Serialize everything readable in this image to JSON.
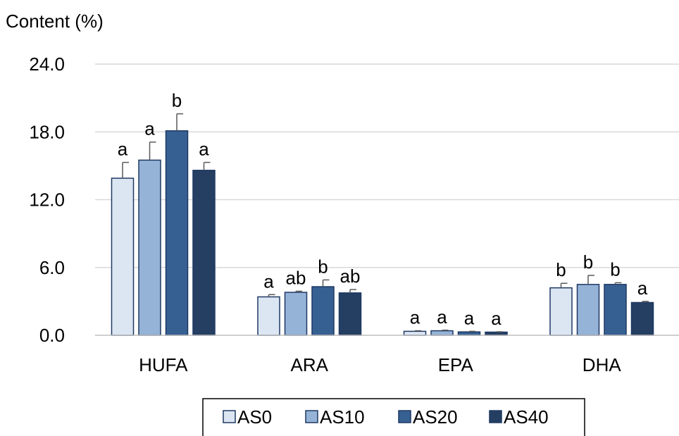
{
  "chart_data": {
    "type": "bar",
    "ylabel": "Content (%)",
    "ylim": [
      0,
      24
    ],
    "yticks": [
      "0.0",
      "6.0",
      "12.0",
      "18.0",
      "24.0"
    ],
    "grid": true,
    "legend_position": "bottom",
    "categories": [
      "HUFA",
      "ARA",
      "EPA",
      "DHA"
    ],
    "series": [
      {
        "name": "AS0",
        "color": "#dce6f2",
        "values": [
          13.9,
          3.4,
          0.35,
          4.2
        ],
        "errors": [
          1.4,
          0.2,
          0.05,
          0.4
        ],
        "labels": [
          "a",
          "a",
          "a",
          "b"
        ]
      },
      {
        "name": "AS10",
        "color": "#95b3d7",
        "values": [
          15.5,
          3.8,
          0.4,
          4.5
        ],
        "errors": [
          1.6,
          0.1,
          0.05,
          0.8
        ],
        "labels": [
          "a",
          "ab",
          "a",
          "b"
        ]
      },
      {
        "name": "AS20",
        "color": "#376092",
        "values": [
          18.1,
          4.3,
          0.3,
          4.5
        ],
        "errors": [
          1.5,
          0.6,
          0.05,
          0.15
        ],
        "labels": [
          "b",
          "b",
          "a",
          "b"
        ]
      },
      {
        "name": "AS40",
        "color": "#243f62",
        "values": [
          14.6,
          3.75,
          0.28,
          2.9
        ],
        "errors": [
          0.7,
          0.3,
          0.03,
          0.1
        ],
        "labels": [
          "a",
          "ab",
          "a",
          "a"
        ]
      }
    ]
  }
}
